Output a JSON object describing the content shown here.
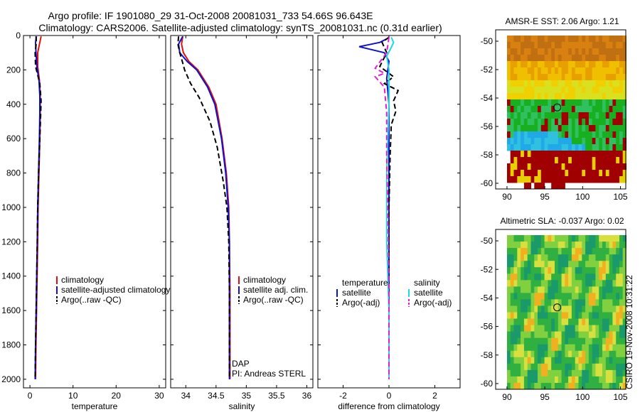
{
  "figure": {
    "title_line1": "Argo profile: IF 1901080_29 31-Oct-2008 20081031_733 54.66S 96.643E",
    "title_line2": "Climatology: CARS2006. Satellite-adjusted climatology: synTS_20081031.nc (0.31d earlier)",
    "footer": "CSIRO 19-Nov-2008 10:31:22",
    "colors": {
      "climatology": "#e01010",
      "satellite": "#1010d0",
      "argo": "#000000",
      "sat_salinity": "#20d8e0",
      "argo_salinity": "#e020d0"
    }
  },
  "chart_data": [
    {
      "type": "line",
      "xlabel": "temperature",
      "ylim": [
        2050,
        0
      ],
      "xlim": [
        -1.5,
        31.5
      ],
      "xticks": [
        "0",
        "10",
        "20",
        "30"
      ],
      "xtick_values": [
        0,
        10,
        20,
        30
      ],
      "yticks": [
        "0",
        "200",
        "400",
        "600",
        "800",
        "1000",
        "1200",
        "1400",
        "1600",
        "1800",
        "2000"
      ],
      "ytick_values": [
        0,
        200,
        400,
        600,
        800,
        1000,
        1200,
        1400,
        1600,
        1800,
        2000
      ],
      "legend": [
        "climatology",
        "satellite-adjusted climatology",
        "Argo(..raw -QC)"
      ],
      "series": [
        {
          "name": "climatology",
          "style": "solid",
          "color": "#e01010",
          "x": [
            2.6,
            2.3,
            1.8,
            1.8,
            2.2,
            2.4,
            2.4,
            2.3,
            2.1,
            1.9,
            1.8,
            1.6,
            1.4,
            1.3
          ],
          "y": [
            5,
            40,
            100,
            180,
            260,
            350,
            450,
            600,
            800,
            1000,
            1200,
            1500,
            1800,
            2000
          ]
        },
        {
          "name": "satellite-adjusted climatology",
          "style": "solid",
          "color": "#1010d0",
          "x": [
            1.5,
            1.3,
            1.4,
            1.6,
            2.1,
            2.3,
            2.3,
            2.2,
            2.0,
            1.8,
            1.7,
            1.5,
            1.3,
            1.2
          ],
          "y": [
            5,
            40,
            100,
            180,
            260,
            350,
            450,
            600,
            800,
            1000,
            1200,
            1500,
            1800,
            2000
          ]
        },
        {
          "name": "Argo(..raw -QC)",
          "style": "dashed",
          "color": "#000000",
          "x": [
            1.4,
            1.5,
            1.2,
            1.3,
            2.3,
            2.6,
            2.5,
            2.3,
            2.0,
            1.8,
            1.7,
            1.5,
            1.3,
            1.2
          ],
          "y": [
            5,
            40,
            100,
            180,
            280,
            380,
            460,
            600,
            800,
            1000,
            1200,
            1500,
            1800,
            2000
          ]
        }
      ]
    },
    {
      "type": "line",
      "xlabel": "salinity",
      "ylim": [
        2050,
        0
      ],
      "xlim": [
        33.75,
        36.1
      ],
      "xticks": [
        "34",
        "34.5",
        "35",
        "35.5",
        "36"
      ],
      "xtick_values": [
        34,
        34.5,
        35,
        35.5,
        36
      ],
      "legend": [
        "climatology",
        "satellite adj. clim.",
        "Argo(..raw -QC)"
      ],
      "annotations": [
        "DAP",
        "PI: Andreas STERL"
      ],
      "series": [
        {
          "name": "climatology",
          "style": "solid",
          "color": "#e01010",
          "x": [
            33.95,
            33.93,
            33.96,
            34.05,
            34.2,
            34.38,
            34.5,
            34.6,
            34.67,
            34.71,
            34.72,
            34.73,
            34.73,
            34.73
          ],
          "y": [
            5,
            50,
            100,
            150,
            200,
            300,
            400,
            600,
            800,
            1000,
            1200,
            1500,
            1800,
            2000
          ]
        },
        {
          "name": "satellite adj. clim.",
          "style": "solid",
          "color": "#1010d0",
          "x": [
            33.95,
            33.88,
            33.9,
            34.02,
            34.18,
            34.36,
            34.48,
            34.59,
            34.66,
            34.7,
            34.72,
            34.72,
            34.72,
            34.72
          ],
          "y": [
            5,
            50,
            100,
            150,
            200,
            300,
            400,
            600,
            800,
            1000,
            1200,
            1500,
            1800,
            2000
          ]
        },
        {
          "name": "Argo(..raw -QC)",
          "style": "dashed",
          "color": "#000000",
          "x": [
            33.88,
            33.87,
            33.9,
            33.95,
            33.98,
            34.08,
            34.22,
            34.4,
            34.52,
            34.62,
            34.68,
            34.71,
            34.72,
            34.72,
            34.72
          ],
          "y": [
            5,
            50,
            100,
            160,
            200,
            280,
            360,
            500,
            650,
            850,
            1000,
            1200,
            1500,
            1800,
            2000
          ]
        }
      ]
    },
    {
      "type": "line",
      "xlabel": "difference from climatology",
      "ylim": [
        2050,
        0
      ],
      "xlim": [
        -3.1,
        3.1
      ],
      "xticks": [
        "-2",
        "0",
        "2"
      ],
      "xtick_values": [
        -2,
        0,
        2
      ],
      "legend_headers": [
        "temperature",
        "salinity"
      ],
      "legend": [
        "satellite",
        "Argo(-adj)",
        "satellite",
        "Argo(-adj)"
      ],
      "series": [
        {
          "name": "temperature satellite",
          "style": "solid",
          "color": "#1010d0",
          "x": [
            -0.1,
            -0.4,
            -1.3,
            -0.2,
            0.0,
            -0.1,
            0.0,
            0.0,
            0.0,
            0.0,
            0.0
          ],
          "y": [
            20,
            40,
            65,
            100,
            150,
            250,
            400,
            700,
            1200,
            1600,
            2000
          ]
        },
        {
          "name": "temperature Argo(-adj)",
          "style": "dashed",
          "color": "#000000",
          "x": [
            0.0,
            -0.3,
            -0.1,
            -0.4,
            0.2,
            -0.2,
            0.4,
            0.2,
            0.3,
            0.1,
            0.05,
            0.0,
            0.0,
            0.0
          ],
          "y": [
            10,
            40,
            100,
            180,
            240,
            280,
            320,
            380,
            440,
            520,
            700,
            1000,
            1500,
            2000
          ]
        },
        {
          "name": "salinity satellite",
          "style": "solid",
          "color": "#20d8e0",
          "x": [
            0.1,
            0.2,
            0.1,
            -0.1,
            0.0,
            0.0,
            -0.1,
            -0.1,
            0.0,
            0.0
          ],
          "y": [
            10,
            40,
            70,
            120,
            200,
            400,
            800,
            1200,
            1600,
            2000
          ]
        },
        {
          "name": "salinity Argo(-adj)",
          "style": "dashed",
          "color": "#e020d0",
          "x": [
            0.0,
            -0.1,
            -0.6,
            -0.2,
            -0.6,
            -0.2,
            -0.1,
            -0.1,
            -0.05,
            0.0,
            0.0
          ],
          "y": [
            10,
            100,
            190,
            220,
            240,
            300,
            450,
            700,
            1000,
            1500,
            2000
          ]
        }
      ]
    },
    {
      "type": "heatmap",
      "title": "AMSR-E SST: 2.06 Argo: 1.21",
      "xlim": [
        88.5,
        105.7
      ],
      "ylim": [
        -60.4,
        -49.2
      ],
      "xticks": [
        "90",
        "95",
        "100",
        "105"
      ],
      "xtick_values": [
        90,
        95,
        100,
        105
      ],
      "yticks": [
        "-50",
        "-52",
        "-54",
        "-56",
        "-58",
        "-60"
      ],
      "ytick_values": [
        -50,
        -52,
        -54,
        -56,
        -58,
        -60
      ],
      "marker": {
        "lon": 96.64,
        "lat": -54.66
      }
    },
    {
      "type": "heatmap",
      "title": "Altimetric SLA: -0.037 Argo: 0.02",
      "xlim": [
        88.5,
        105.7
      ],
      "ylim": [
        -60.4,
        -49.2
      ],
      "xticks": [
        "90",
        "95",
        "100",
        "105"
      ],
      "xtick_values": [
        90,
        95,
        100,
        105
      ],
      "yticks": [
        "-50",
        "-52",
        "-54",
        "-56",
        "-58",
        "-60"
      ],
      "ytick_values": [
        -50,
        -52,
        -54,
        -56,
        -58,
        -60
      ],
      "marker": {
        "lon": 96.64,
        "lat": -54.66
      }
    }
  ]
}
